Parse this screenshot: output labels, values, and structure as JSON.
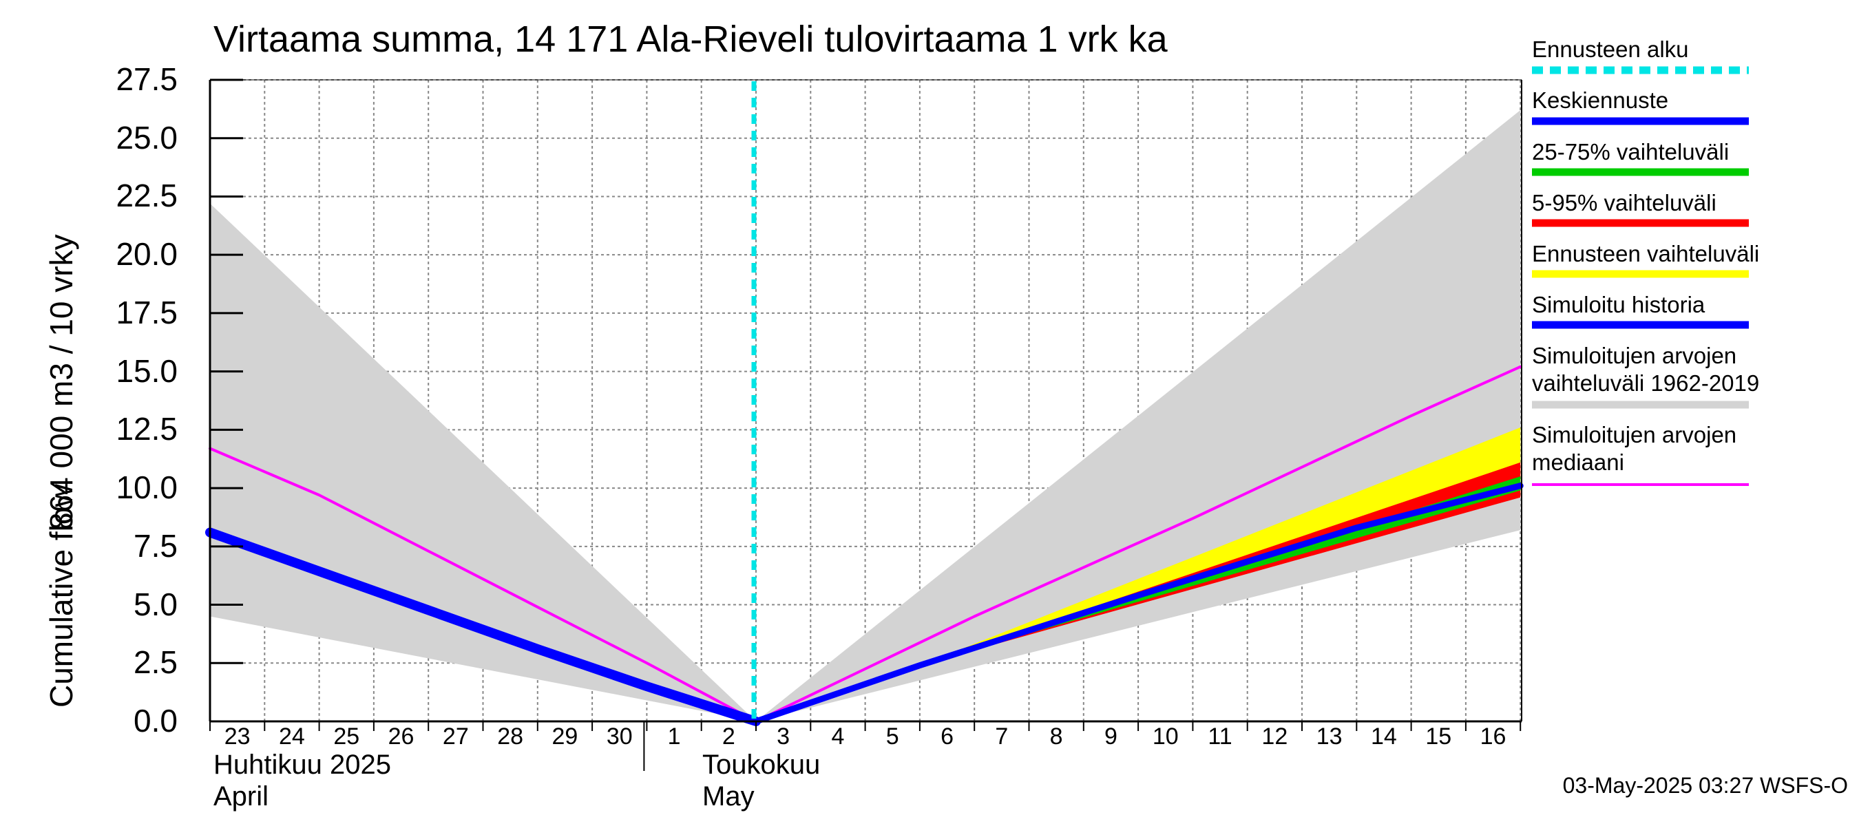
{
  "title": "Virtaama summa, 14 171 Ala-Rieveli tulovirtaama 1 vrk ka",
  "footer": "03-May-2025 03:27 WSFS-O",
  "y_axis": {
    "label_top": "864 000 m3 / 10 vrky",
    "label_bottom": "Cumulative flow",
    "ticks": [
      "0.0",
      "2.5",
      "5.0",
      "7.5",
      "10.0",
      "12.5",
      "15.0",
      "17.5",
      "20.0",
      "22.5",
      "25.0",
      "27.5"
    ]
  },
  "x_axis": {
    "ticks": [
      "23",
      "24",
      "25",
      "26",
      "27",
      "28",
      "29",
      "30",
      "1",
      "2",
      "3",
      "4",
      "5",
      "6",
      "7",
      "8",
      "9",
      "10",
      "11",
      "12",
      "13",
      "14",
      "15",
      "16"
    ],
    "month1_line1": "Huhtikuu  2025",
    "month1_line2": "April",
    "month2_line1": "Toukokuu",
    "month2_line2": "May"
  },
  "legend": [
    {
      "label": "Ennusteen alku",
      "color": "#00e5e5",
      "style": "dashed"
    },
    {
      "label": "Keskiennuste",
      "color": "#0000ff",
      "style": "solid"
    },
    {
      "label": "25-75% vaihteluväli",
      "color": "#00cc00",
      "style": "solid"
    },
    {
      "label": "5-95% vaihteluväli",
      "color": "#ff0000",
      "style": "solid"
    },
    {
      "label": "Ennusteen vaihteluväli",
      "color": "#ffff00",
      "style": "solid"
    },
    {
      "label": "Simuloitu historia",
      "color": "#0000ff",
      "style": "solid"
    },
    {
      "label": "Simuloitujen arvojen vaihteluväli 1962-2019",
      "label_line1": "Simuloitujen arvojen",
      "label_line2": "vaihteluväli 1962-2019",
      "color": "#d3d3d3",
      "style": "solid"
    },
    {
      "label": "Simuloitujen arvojen mediaani",
      "label_line1": "Simuloitujen arvojen",
      "label_line2": "mediaani",
      "color": "#ff00ff",
      "style": "solid"
    }
  ],
  "chart_data": {
    "type": "area",
    "ylim": [
      0,
      27.5
    ],
    "x_dates": [
      "2025-04-23",
      "2025-04-24",
      "2025-04-25",
      "2025-04-26",
      "2025-04-27",
      "2025-04-28",
      "2025-04-29",
      "2025-04-30",
      "2025-05-01",
      "2025-05-02",
      "2025-05-03",
      "2025-05-04",
      "2025-05-05",
      "2025-05-06",
      "2025-05-07",
      "2025-05-08",
      "2025-05-09",
      "2025-05-10",
      "2025-05-11",
      "2025-05-12",
      "2025-05-13",
      "2025-05-14",
      "2025-05-15",
      "2025-05-16",
      "2025-05-17"
    ],
    "forecast_start": "2025-05-03",
    "series": [
      {
        "name": "Simuloitujen arvojen vaihteluväli 1962-2019",
        "kind": "band",
        "x": [
          "2025-04-23",
          "2025-05-03",
          "2025-05-17"
        ],
        "low": [
          4.5,
          0.0,
          8.2
        ],
        "high": [
          22.2,
          0.0,
          26.2
        ]
      },
      {
        "name": "Ennusteen vaihteluväli",
        "kind": "band",
        "x": [
          "2025-05-06",
          "2025-05-17"
        ],
        "low": [
          2.4,
          9.7
        ],
        "high": [
          2.4,
          12.6
        ]
      },
      {
        "name": "5-95% vaihteluväli",
        "kind": "band",
        "x": [
          "2025-05-06",
          "2025-05-17"
        ],
        "low": [
          2.4,
          9.6
        ],
        "high": [
          2.4,
          11.1
        ]
      },
      {
        "name": "25-75% vaihteluväli",
        "kind": "band",
        "x": [
          "2025-05-06",
          "2025-05-17"
        ],
        "low": [
          2.4,
          9.9
        ],
        "high": [
          2.4,
          10.5
        ]
      },
      {
        "name": "Simuloitujen arvojen mediaani",
        "kind": "line",
        "x": [
          "2025-04-23",
          "2025-04-25",
          "2025-04-27",
          "2025-04-29",
          "2025-05-01",
          "2025-05-03",
          "2025-05-07",
          "2025-05-11",
          "2025-05-15",
          "2025-05-17"
        ],
        "y": [
          11.7,
          9.7,
          7.3,
          4.9,
          2.5,
          0.0,
          4.5,
          8.7,
          13.1,
          15.2
        ]
      },
      {
        "name": "Simuloitu historia",
        "kind": "line",
        "x": [
          "2025-04-23",
          "2025-04-26",
          "2025-04-29",
          "2025-05-01",
          "2025-05-03"
        ],
        "y": [
          8.1,
          5.6,
          3.1,
          1.5,
          0.0
        ]
      },
      {
        "name": "Keskiennuste",
        "kind": "line",
        "x": [
          "2025-05-03",
          "2025-05-06",
          "2025-05-10",
          "2025-05-14",
          "2025-05-17"
        ],
        "y": [
          0.0,
          2.4,
          5.4,
          8.3,
          10.1
        ]
      }
    ]
  }
}
